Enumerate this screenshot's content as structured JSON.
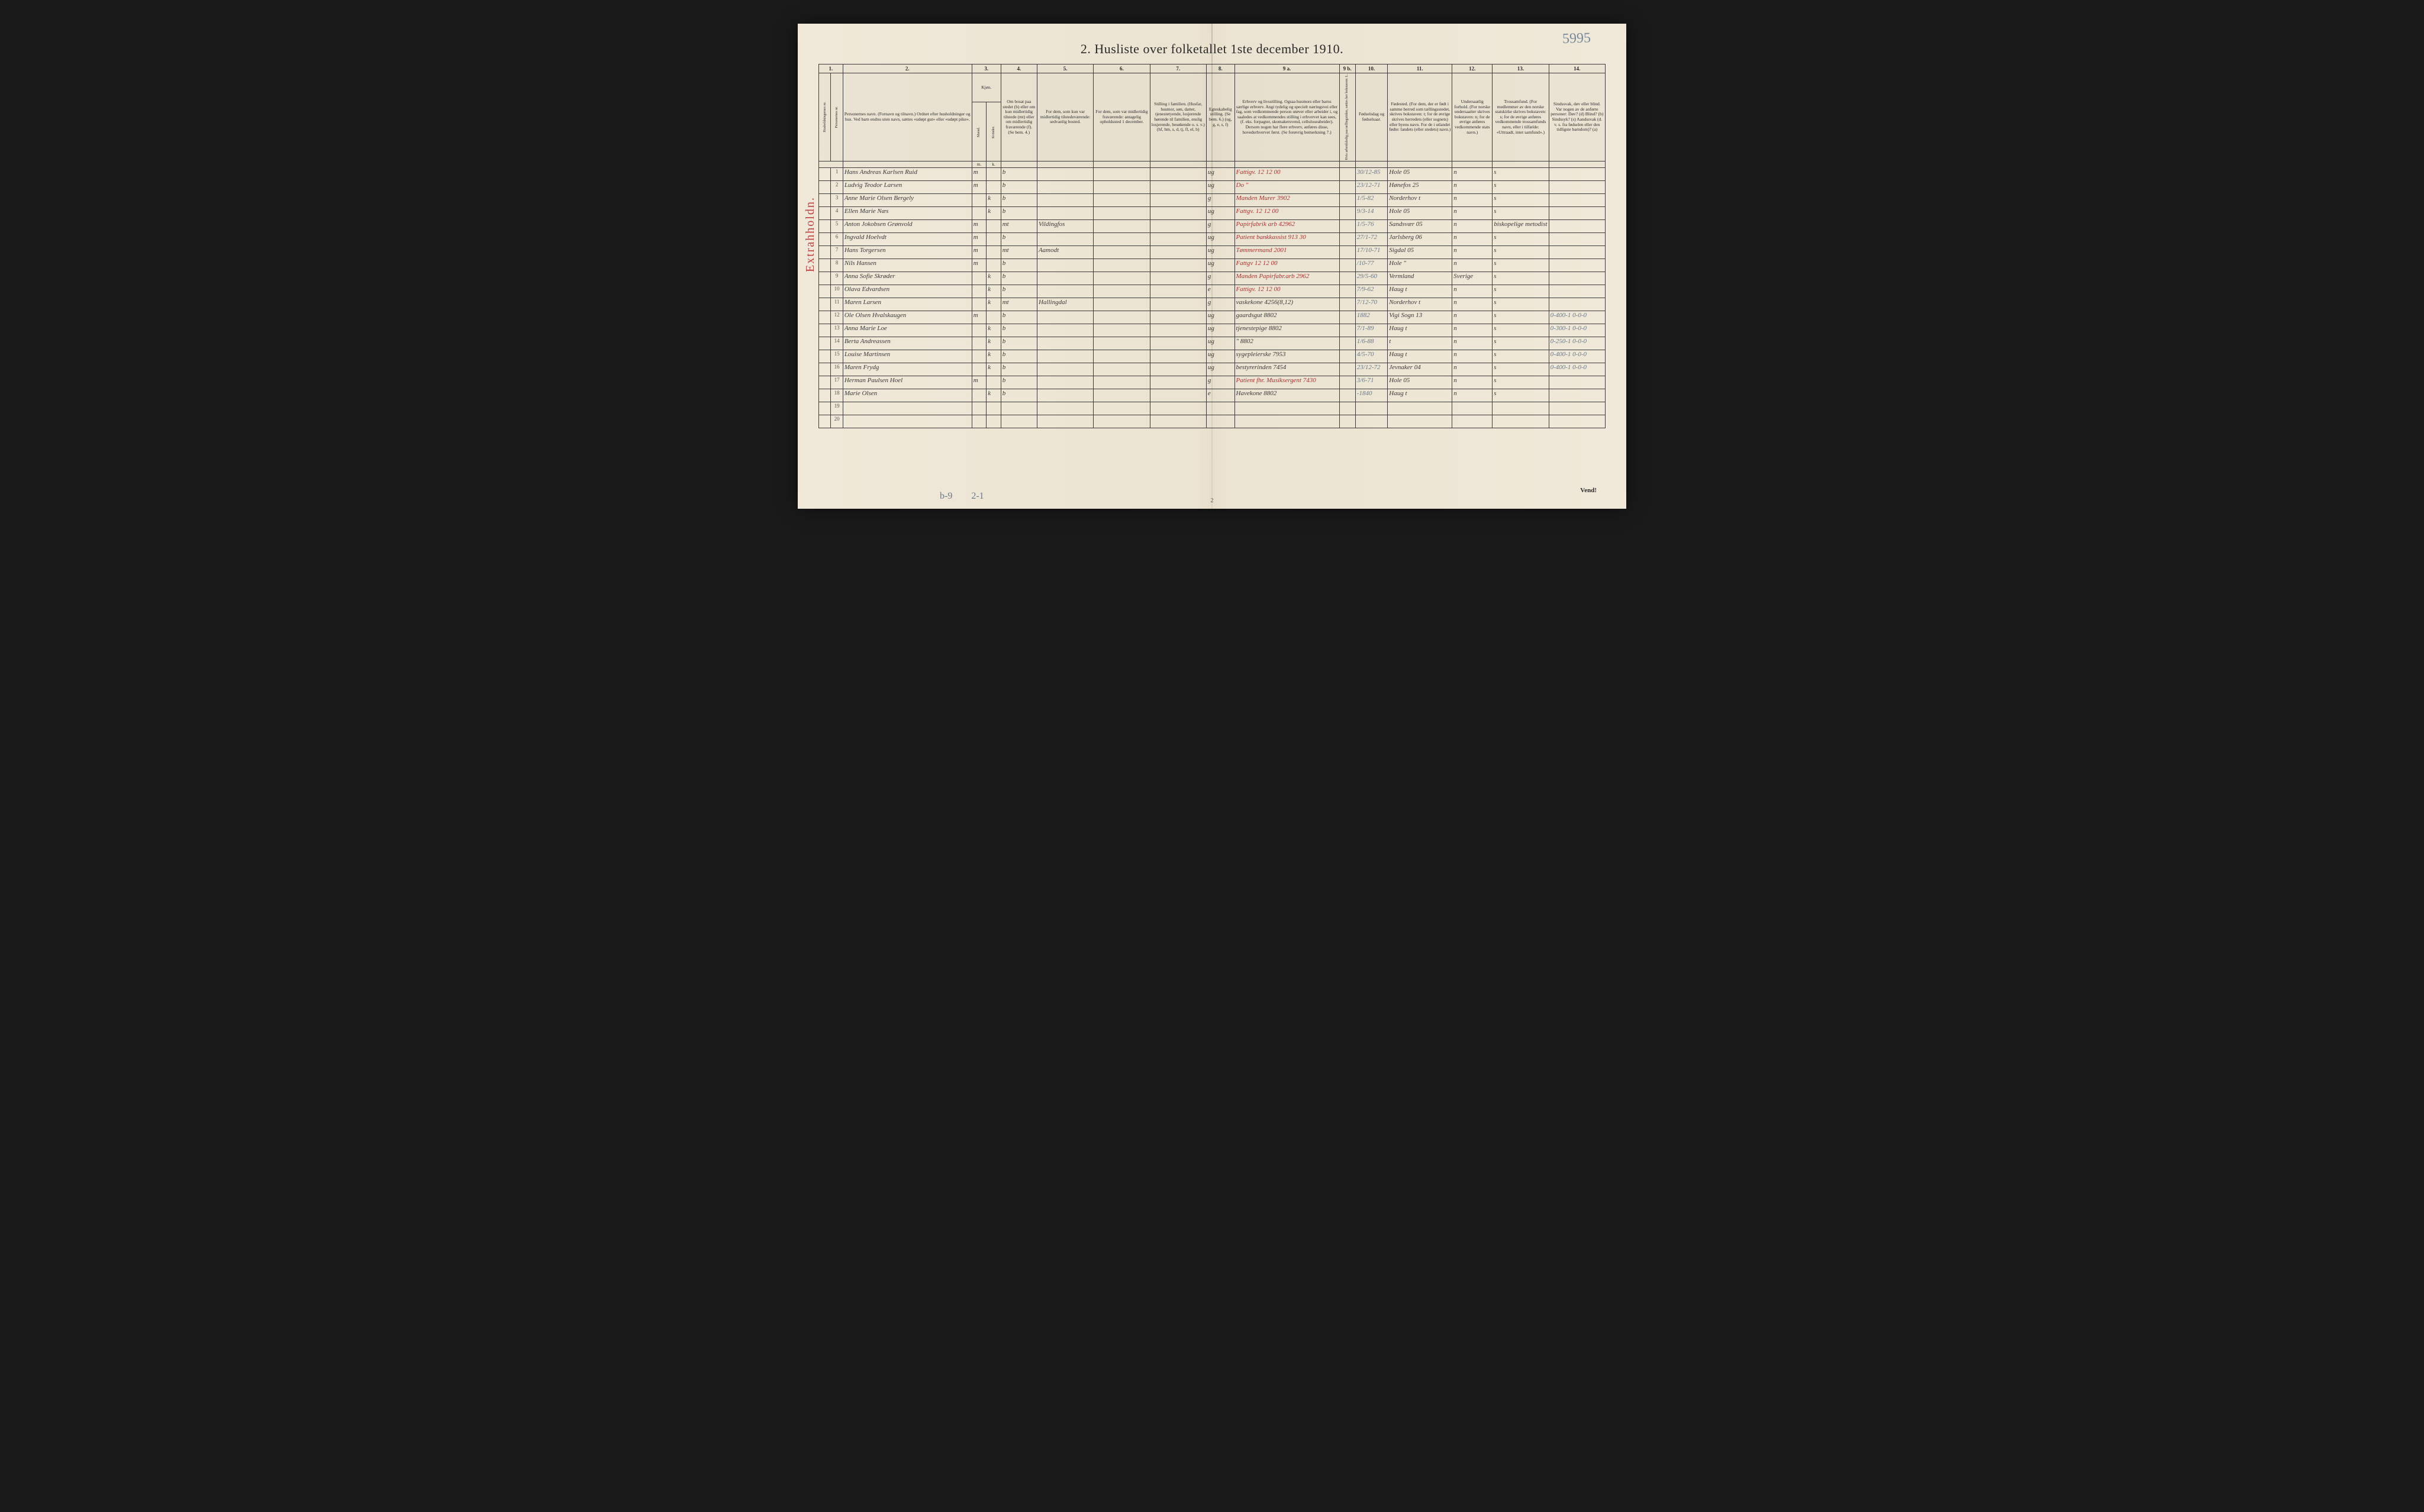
{
  "meta": {
    "title": "2.  Husliste over folketallet 1ste december 1910.",
    "handwritten_page_number": "5995",
    "sideways_label": "Extrahholdn.",
    "bottom_pencil_left": "b-9",
    "bottom_pencil_right": "2-1",
    "vend": "Vend!",
    "foot_page_num": "2"
  },
  "columns": {
    "nums": [
      "1.",
      "2.",
      "3.",
      "4.",
      "5.",
      "6.",
      "7.",
      "8.",
      "9 a.",
      "9 b.",
      "10.",
      "11.",
      "12.",
      "13.",
      "14."
    ],
    "h1": "Husholdningernes nr.",
    "h1b": "Personernes nr.",
    "h2": "Personernes navn.\n(Fornavn og tilnavn.)\nOrdnet efter husholdninger og hus.\nVed barn endnu uten navn, sættes «udøpt gut» eller «udøpt pike».",
    "h3": "Kjøn.",
    "h3a": "Mænd.",
    "h3b": "Kvinder.",
    "h4": "Om bosat paa stedet (b) eller om kun midlertidig tilstede (mt) eller om midlertidig fraværende (f). (Se bem. 4.)",
    "h5": "For dem, som kun var midlertidig tilstedeværende:\nsedvanlig bosted.",
    "h6": "For dem, som var midlertidig fraværende:\nantagelig opholdssted 1 december.",
    "h7": "Stilling i familien.\n(Husfar, husmor, søn, datter, tjenestetyende, losjerende hørende til familien, enslig losjerende, besøkende o. s. v.)\n(hf, hm, s, d, tj, fl, el, b)",
    "h8": "Egteskabelig stilling.\n(Se bem. 6.)\n(ug, g, e, s, f)",
    "h9a": "Erhverv og livsstilling.\nOgsaa husmors eller barns særlige erhverv.\nAngi tydelig og specielt næringsvei eller fag, som vedkommende person utøver eller arbeider i, og saaledes at vedkommendes stilling i erhvervet kan sees, (f. eks. forpagter, skomakersvend, celluloseabeider). Dersom nogen har flere erhverv, anføres disse, hovederhvervet først.\n(Se forøvrig bemerkning 7.)",
    "h9b": "Hvis arbeidsledig paa tællingstiden, sættes her bokstaven: L.",
    "h10": "Fødselsdag og fødselsaar.",
    "h11": "Fødested.\n(For dem, der er født i samme herred som tællingsstedet, skrives bokstaven: t; for de øvrige skrives herredets (eller sognets) eller byens navn.\nFor de i utlandet fødte: landets (eller stedets) navn.)",
    "h12": "Undersaatlig forhold.\n(For norske undersaatter skrives bokstaven: n; for de øvrige anføres vedkommende stats navn.)",
    "h13": "Trossamfund.\n(For medlemmer av den norske statskirke skrives bokstaven: s; for de øvrige anføres vedkommende trossamfunds navn, eller i tilfælde: «Uttraadt, intet samfund».)",
    "h14": "Sindssvak, døv eller blind.\nVar nogen av de anførte personer:\nDøv? (d)\nBlind? (b)\nSindssyk? (s)\nAandssvak (d. v. s. fra fødselen eller den tidligste barndom)? (a)"
  },
  "rows": [
    {
      "n": "1",
      "name": "Hans Andreas Karlsen Ruid",
      "sex_m": "m",
      "sex_k": "",
      "res": "b",
      "temp": "",
      "away": "",
      "fam": "",
      "civ": "ug",
      "occ": "Fattigv. 12 12 00",
      "led": "",
      "born": "30/12-85",
      "place": "Hole 05",
      "nat": "n",
      "rel": "s",
      "dis": ""
    },
    {
      "n": "2",
      "name": "Ludvig Teodor Larsen",
      "sex_m": "m",
      "sex_k": "",
      "res": "b",
      "temp": "",
      "away": "",
      "fam": "",
      "civ": "ug",
      "occ": "Do \"",
      "led": "",
      "born": "23/12-71",
      "place": "Hønefos 25",
      "nat": "n",
      "rel": "s",
      "dis": ""
    },
    {
      "n": "3",
      "name": "Anne Marie Olsen Bergely",
      "sex_m": "",
      "sex_k": "k",
      "res": "b",
      "temp": "",
      "away": "",
      "fam": "",
      "civ": "g",
      "occ": "Manden Murer 3902",
      "led": "",
      "born": "1/5-82",
      "place": "Norderhov t",
      "nat": "n",
      "rel": "s",
      "dis": ""
    },
    {
      "n": "4",
      "name": "Ellen Marie Næs",
      "sex_m": "",
      "sex_k": "k",
      "res": "b",
      "temp": "",
      "away": "",
      "fam": "",
      "civ": "ug",
      "occ": "Fattgv. 12 12 00",
      "led": "",
      "born": "9/3-14",
      "place": "Hole 05",
      "nat": "n",
      "rel": "s",
      "dis": ""
    },
    {
      "n": "5",
      "name": "Anton Jokobsen Grønvold",
      "sex_m": "m",
      "sex_k": "",
      "res": "mt",
      "temp": "Vildingfos",
      "away": "",
      "fam": "",
      "civ": "g",
      "occ": "Papirfabrik arb 42962",
      "led": "",
      "born": "1/5-76",
      "place": "Sandsvær 05",
      "nat": "n",
      "rel": "biskopelige metodist",
      "dis": ""
    },
    {
      "n": "6",
      "name": "Ingvald Hoelvdt",
      "sex_m": "m",
      "sex_k": "",
      "res": "b",
      "temp": "",
      "away": "",
      "fam": "",
      "civ": "ug",
      "occ": "Patient bankkassist 913 30",
      "led": "",
      "born": "27/1-72",
      "place": "Jarlsberg 06",
      "nat": "n",
      "rel": "s",
      "dis": ""
    },
    {
      "n": "7",
      "name": "Hans Torgersen",
      "sex_m": "m",
      "sex_k": "",
      "res": "mt",
      "temp": "Aamodt",
      "away": "",
      "fam": "",
      "civ": "ug",
      "occ": "Tømmermand 2001",
      "led": "",
      "born": "17/10-71",
      "place": "Sigdal 05",
      "nat": "n",
      "rel": "s",
      "dis": ""
    },
    {
      "n": "8",
      "name": "Nils Hansen",
      "sex_m": "m",
      "sex_k": "",
      "res": "b",
      "temp": "",
      "away": "",
      "fam": "",
      "civ": "ug",
      "occ": "Fattgv 12 12 00",
      "led": "",
      "born": "/10-77",
      "place": "Hole \"",
      "nat": "n",
      "rel": "s",
      "dis": ""
    },
    {
      "n": "9",
      "name": "Anna Sofie Skrøder",
      "sex_m": "",
      "sex_k": "k",
      "res": "b",
      "temp": "",
      "away": "",
      "fam": "",
      "civ": "g",
      "occ": "Manden Papirfabr.arb 2962",
      "led": "",
      "born": "29/5-60",
      "place": "Vermland",
      "nat": "Sverige",
      "rel": "s",
      "dis": ""
    },
    {
      "n": "10",
      "name": "Olava Edvardsen",
      "sex_m": "",
      "sex_k": "k",
      "res": "b",
      "temp": "",
      "away": "",
      "fam": "",
      "civ": "e",
      "occ": "Fattigv. 12 12 00",
      "led": "",
      "born": "7/9-62",
      "place": "Haug t",
      "nat": "n",
      "rel": "s",
      "dis": ""
    },
    {
      "n": "11",
      "name": "Maren Larsen",
      "sex_m": "",
      "sex_k": "k",
      "res": "mt",
      "temp": "Hallingdal",
      "away": "",
      "fam": "",
      "civ": "g",
      "occ": "vaskekone 4256(8,12)",
      "led": "",
      "born": "7/12-70",
      "place": "Norderhov t",
      "nat": "n",
      "rel": "s",
      "dis": ""
    },
    {
      "n": "12",
      "name": "Ole Olsen Hvalskaugen",
      "sex_m": "m",
      "sex_k": "",
      "res": "b",
      "temp": "",
      "away": "",
      "fam": "",
      "civ": "ug",
      "occ": "gaardsgut 8802",
      "led": "",
      "born": "1882",
      "place": "Vigi Sogn 13",
      "nat": "n",
      "rel": "s",
      "dis": "0-400-1  0-0-0"
    },
    {
      "n": "13",
      "name": "Anna Marie Loe",
      "sex_m": "",
      "sex_k": "k",
      "res": "b",
      "temp": "",
      "away": "",
      "fam": "",
      "civ": "ug",
      "occ": "tjenestepige 8802",
      "led": "",
      "born": "7/1-89",
      "place": "Haug t",
      "nat": "n",
      "rel": "s",
      "dis": "0-300-1  0-0-0"
    },
    {
      "n": "14",
      "name": "Berta Andreassen",
      "sex_m": "",
      "sex_k": "k",
      "res": "b",
      "temp": "",
      "away": "",
      "fam": "",
      "civ": "ug",
      "occ": "\" 8802",
      "led": "",
      "born": "1/6-88",
      "place": "t",
      "nat": "n",
      "rel": "s",
      "dis": "0-250-1  0-0-0"
    },
    {
      "n": "15",
      "name": "Louise Martinsen",
      "sex_m": "",
      "sex_k": "k",
      "res": "b",
      "temp": "",
      "away": "",
      "fam": "",
      "civ": "ug",
      "occ": "sygepleierske 7953",
      "led": "",
      "born": "4/5-70",
      "place": "Haug t",
      "nat": "n",
      "rel": "s",
      "dis": "0-400-1  0-0-0"
    },
    {
      "n": "16",
      "name": "Maren Frydg",
      "sex_m": "",
      "sex_k": "k",
      "res": "b",
      "temp": "",
      "away": "",
      "fam": "",
      "civ": "ug",
      "occ": "bestyrerinden 7454",
      "led": "",
      "born": "23/12-72",
      "place": "Jevnaker 04",
      "nat": "n",
      "rel": "s",
      "dis": "0-400-1  0-0-0"
    },
    {
      "n": "17",
      "name": "Herman Paulsen Hoel",
      "sex_m": "m",
      "sex_k": "",
      "res": "b",
      "temp": "",
      "away": "",
      "fam": "",
      "civ": "g",
      "occ": "Patient fhr. Musiksergent 7430",
      "led": "",
      "born": "3/6-71",
      "place": "Hole 05",
      "nat": "n",
      "rel": "s",
      "dis": ""
    },
    {
      "n": "18",
      "name": "Marie Olsen",
      "sex_m": "",
      "sex_k": "k",
      "res": "b",
      "temp": "",
      "away": "",
      "fam": "",
      "civ": "e",
      "occ": "Havekone 8802",
      "led": "",
      "born": "-1840",
      "place": "Haug t",
      "nat": "n",
      "rel": "s",
      "dis": ""
    },
    {
      "n": "19",
      "name": "",
      "sex_m": "",
      "sex_k": "",
      "res": "",
      "temp": "",
      "away": "",
      "fam": "",
      "civ": "",
      "occ": "",
      "led": "",
      "born": "",
      "place": "",
      "nat": "",
      "rel": "",
      "dis": ""
    },
    {
      "n": "20",
      "name": "",
      "sex_m": "",
      "sex_k": "",
      "res": "",
      "temp": "",
      "away": "",
      "fam": "",
      "civ": "",
      "occ": "",
      "led": "",
      "born": "",
      "place": "",
      "nat": "",
      "rel": "",
      "dis": ""
    }
  ],
  "red_ink_rows": [
    1,
    2,
    3,
    4,
    5,
    6,
    7,
    8,
    9,
    10,
    17
  ],
  "colors": {
    "paper": "#f0e8d8",
    "ink": "#2a2a2a",
    "red_ink": "#b03030",
    "pencil": "#6a7a8a",
    "border": "#3a3a3a"
  }
}
